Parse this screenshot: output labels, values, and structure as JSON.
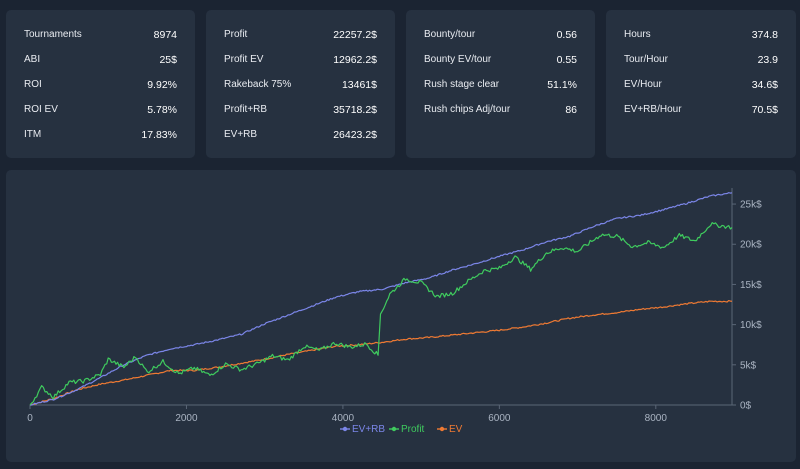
{
  "stats": [
    {
      "rows": [
        {
          "label": "Tournaments",
          "value": "8974"
        },
        {
          "label": "ABI",
          "value": "25$"
        },
        {
          "label": "ROI",
          "value": "9.92%"
        },
        {
          "label": "ROI EV",
          "value": "5.78%"
        },
        {
          "label": "ITM",
          "value": "17.83%"
        }
      ]
    },
    {
      "rows": [
        {
          "label": "Profit",
          "value": "22257.2$"
        },
        {
          "label": "Profit EV",
          "value": "12962.2$"
        },
        {
          "label": "Rakeback 75%",
          "value": "13461$"
        },
        {
          "label": "Profit+RB",
          "value": "35718.2$"
        },
        {
          "label": "EV+RB",
          "value": "26423.2$"
        }
      ]
    },
    {
      "rows": [
        {
          "label": "Bounty/tour",
          "value": "0.56"
        },
        {
          "label": "Bounty EV/tour",
          "value": "0.55"
        },
        {
          "label": "Rush stage clear",
          "value": "51.1%"
        },
        {
          "label": "Rush chips Adj/tour",
          "value": "86"
        }
      ]
    },
    {
      "rows": [
        {
          "label": "Hours",
          "value": "374.8"
        },
        {
          "label": "Tour/Hour",
          "value": "23.9"
        },
        {
          "label": "EV/Hour",
          "value": "34.6$"
        },
        {
          "label": "EV+RB/Hour",
          "value": "70.5$"
        }
      ]
    }
  ],
  "chart_data": {
    "type": "line",
    "xlim": [
      0,
      8974
    ],
    "ylim": [
      0,
      26500
    ],
    "x_ticks": [
      0,
      2000,
      4000,
      6000,
      8000
    ],
    "x_tick_labels": [
      "0",
      "2000",
      "4000",
      "6000",
      "8000"
    ],
    "y_ticks": [
      0,
      5000,
      10000,
      15000,
      20000,
      25000
    ],
    "y_tick_labels": [
      "0$",
      "5k$",
      "10k$",
      "15k$",
      "20k$",
      "25k$"
    ],
    "legend_position": "bottom-center",
    "series": [
      {
        "name": "EV+RB",
        "color": "#7b86e8",
        "points": [
          [
            0,
            0
          ],
          [
            300,
            700
          ],
          [
            600,
            1900
          ],
          [
            900,
            3400
          ],
          [
            1200,
            5000
          ],
          [
            1500,
            6200
          ],
          [
            1800,
            7000
          ],
          [
            2100,
            7500
          ],
          [
            2400,
            8100
          ],
          [
            2700,
            8800
          ],
          [
            3000,
            10100
          ],
          [
            3300,
            11200
          ],
          [
            3600,
            12300
          ],
          [
            3900,
            13400
          ],
          [
            4200,
            14100
          ],
          [
            4500,
            14400
          ],
          [
            4800,
            15200
          ],
          [
            5100,
            15800
          ],
          [
            5400,
            16800
          ],
          [
            5700,
            17600
          ],
          [
            6000,
            18500
          ],
          [
            6300,
            19300
          ],
          [
            6600,
            20300
          ],
          [
            6900,
            21000
          ],
          [
            7200,
            22200
          ],
          [
            7500,
            23200
          ],
          [
            7800,
            23600
          ],
          [
            8100,
            24300
          ],
          [
            8400,
            25100
          ],
          [
            8700,
            26000
          ],
          [
            8974,
            26400
          ]
        ]
      },
      {
        "name": "Profit",
        "color": "#3fcb5e",
        "points": [
          [
            0,
            0
          ],
          [
            150,
            2200
          ],
          [
            300,
            1000
          ],
          [
            500,
            2800
          ],
          [
            700,
            3000
          ],
          [
            900,
            3800
          ],
          [
            1000,
            5700
          ],
          [
            1200,
            4700
          ],
          [
            1350,
            6000
          ],
          [
            1500,
            4100
          ],
          [
            1700,
            5400
          ],
          [
            1900,
            3900
          ],
          [
            2100,
            4600
          ],
          [
            2300,
            3700
          ],
          [
            2500,
            5100
          ],
          [
            2700,
            4400
          ],
          [
            2900,
            5100
          ],
          [
            3100,
            6100
          ],
          [
            3300,
            5600
          ],
          [
            3500,
            7300
          ],
          [
            3700,
            6800
          ],
          [
            3900,
            7700
          ],
          [
            4100,
            7200
          ],
          [
            4300,
            7600
          ],
          [
            4450,
            6200
          ],
          [
            4480,
            11300
          ],
          [
            4600,
            13800
          ],
          [
            4800,
            15700
          ],
          [
            5000,
            15200
          ],
          [
            5200,
            13500
          ],
          [
            5400,
            13900
          ],
          [
            5600,
            15400
          ],
          [
            5800,
            16700
          ],
          [
            6000,
            17000
          ],
          [
            6200,
            18400
          ],
          [
            6400,
            16900
          ],
          [
            6600,
            18900
          ],
          [
            6800,
            19600
          ],
          [
            7000,
            19100
          ],
          [
            7300,
            21200
          ],
          [
            7500,
            21000
          ],
          [
            7700,
            19700
          ],
          [
            7900,
            20200
          ],
          [
            8100,
            19600
          ],
          [
            8300,
            21100
          ],
          [
            8500,
            20400
          ],
          [
            8700,
            22500
          ],
          [
            8974,
            22100
          ]
        ]
      },
      {
        "name": "EV",
        "color": "#ef7a33",
        "points": [
          [
            0,
            0
          ],
          [
            300,
            800
          ],
          [
            600,
            1900
          ],
          [
            900,
            2600
          ],
          [
            1200,
            3100
          ],
          [
            1500,
            3700
          ],
          [
            1800,
            4300
          ],
          [
            2100,
            4300
          ],
          [
            2400,
            4700
          ],
          [
            2700,
            5200
          ],
          [
            3000,
            5700
          ],
          [
            3300,
            6300
          ],
          [
            3600,
            6800
          ],
          [
            3900,
            7300
          ],
          [
            4200,
            7500
          ],
          [
            4500,
            7800
          ],
          [
            4800,
            8200
          ],
          [
            5100,
            8400
          ],
          [
            5400,
            8700
          ],
          [
            5700,
            9000
          ],
          [
            6000,
            9300
          ],
          [
            6300,
            9700
          ],
          [
            6600,
            10200
          ],
          [
            6900,
            10800
          ],
          [
            7200,
            11200
          ],
          [
            7500,
            11500
          ],
          [
            7800,
            11900
          ],
          [
            8100,
            12200
          ],
          [
            8400,
            12600
          ],
          [
            8700,
            12900
          ],
          [
            8974,
            12900
          ]
        ]
      }
    ]
  }
}
